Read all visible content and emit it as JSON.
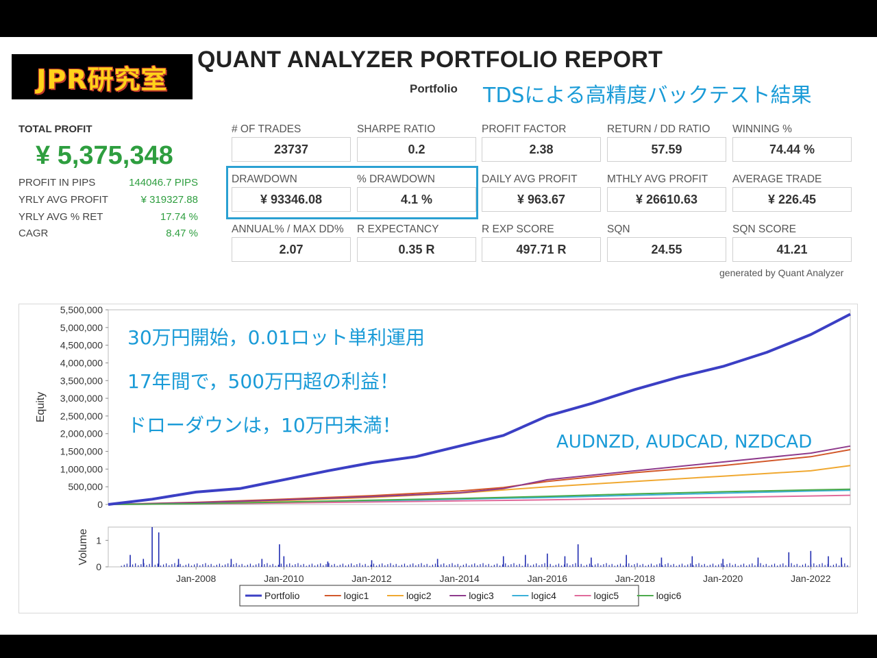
{
  "header": {
    "logo_text": "JPR研究室",
    "title": "QUANT ANALYZER PORTFOLIO REPORT",
    "portfolio_label": "Portfolio",
    "subtitle": "TDSによる高精度バックテスト結果"
  },
  "summary": {
    "total_profit_label": "TOTAL PROFIT",
    "total_profit_value": "¥ 5,375,348",
    "rows": [
      {
        "label": "PROFIT IN PIPS",
        "value": "144046.7 PIPS"
      },
      {
        "label": "YRLY AVG PROFIT",
        "value": "¥ 319327.88"
      },
      {
        "label": "YRLY AVG % RET",
        "value": "17.74 %"
      },
      {
        "label": "CAGR",
        "value": "8.47 %"
      }
    ]
  },
  "stats": [
    {
      "label": "# OF TRADES",
      "value": "23737"
    },
    {
      "label": "SHARPE RATIO",
      "value": "0.2"
    },
    {
      "label": "PROFIT FACTOR",
      "value": "2.38"
    },
    {
      "label": "RETURN / DD RATIO",
      "value": "57.59"
    },
    {
      "label": "WINNING %",
      "value": "74.44 %"
    },
    {
      "label": "DRAWDOWN",
      "value": "¥ 93346.08"
    },
    {
      "label": "% DRAWDOWN",
      "value": "4.1 %"
    },
    {
      "label": "DAILY AVG PROFIT",
      "value": "¥ 963.67"
    },
    {
      "label": "MTHLY AVG PROFIT",
      "value": "¥ 26610.63"
    },
    {
      "label": "AVERAGE TRADE",
      "value": "¥ 226.45"
    },
    {
      "label": "ANNUAL% / MAX DD%",
      "value": "2.07"
    },
    {
      "label": "R EXPECTANCY",
      "value": "0.35 R"
    },
    {
      "label": "R EXP SCORE",
      "value": "497.71 R"
    },
    {
      "label": "SQN",
      "value": "24.55"
    },
    {
      "label": "SQN SCORE",
      "value": "41.21"
    }
  ],
  "generated_by": "generated by Quant Analyzer",
  "colors": {
    "accent_blue": "#2aa0d2",
    "profit_green": "#2e9e3f",
    "annotation_blue": "#1a9bd7"
  },
  "chart_data": {
    "type": "line",
    "ylabel": "Equity",
    "ylim": [
      0,
      5500000
    ],
    "yticks": [
      "5,500,000",
      "5,000,000",
      "4,500,000",
      "4,000,000",
      "3,500,000",
      "3,000,000",
      "2,500,000",
      "2,000,000",
      "1,500,000",
      "1,000,000",
      "500,000",
      "0"
    ],
    "ytick_values": [
      5500000,
      5000000,
      4500000,
      4000000,
      3500000,
      3000000,
      2500000,
      2000000,
      1500000,
      1000000,
      500000,
      0
    ],
    "xlim": [
      2006.0,
      2022.9
    ],
    "xticks": [
      {
        "label": "Jan-2008",
        "x": 2008
      },
      {
        "label": "Jan-2010",
        "x": 2010
      },
      {
        "label": "Jan-2012",
        "x": 2012
      },
      {
        "label": "Jan-2014",
        "x": 2014
      },
      {
        "label": "Jan-2016",
        "x": 2016
      },
      {
        "label": "Jan-2018",
        "x": 2018
      },
      {
        "label": "Jan-2020",
        "x": 2020
      },
      {
        "label": "Jan-2022",
        "x": 2022
      }
    ],
    "grid": false,
    "legend_position": "bottom",
    "series": [
      {
        "name": "Portfolio",
        "color": "#3b3fc4",
        "width": 4,
        "x": [
          2006.0,
          2007.0,
          2008.0,
          2009.0,
          2010.0,
          2011.0,
          2012.0,
          2013.0,
          2014.0,
          2015.0,
          2016.0,
          2017.0,
          2018.0,
          2019.0,
          2020.0,
          2021.0,
          2021.5,
          2022.0,
          2022.9
        ],
        "y": [
          0,
          150000,
          350000,
          450000,
          700000,
          950000,
          1180000,
          1350000,
          1650000,
          1950000,
          2500000,
          2850000,
          3250000,
          3600000,
          3900000,
          4300000,
          4550000,
          4800000,
          5375348
        ]
      },
      {
        "name": "logic1",
        "color": "#d2582a",
        "width": 2,
        "x": [
          2006.0,
          2008.0,
          2010.0,
          2012.0,
          2014.0,
          2015.0,
          2016.0,
          2018.0,
          2020.0,
          2022.0,
          2022.9
        ],
        "y": [
          0,
          60000,
          150000,
          250000,
          380000,
          480000,
          650000,
          900000,
          1100000,
          1350000,
          1550000
        ]
      },
      {
        "name": "logic2",
        "color": "#f0a830",
        "width": 2,
        "x": [
          2006.0,
          2008.0,
          2010.0,
          2012.0,
          2014.0,
          2016.0,
          2018.0,
          2020.0,
          2022.0,
          2022.9
        ],
        "y": [
          0,
          40000,
          110000,
          200000,
          320000,
          500000,
          650000,
          800000,
          950000,
          1100000
        ]
      },
      {
        "name": "logic3",
        "color": "#8e3a8c",
        "width": 2,
        "x": [
          2006.0,
          2008.0,
          2010.0,
          2012.0,
          2014.0,
          2015.0,
          2016.0,
          2018.0,
          2020.0,
          2022.0,
          2022.9
        ],
        "y": [
          0,
          50000,
          130000,
          220000,
          330000,
          450000,
          700000,
          950000,
          1200000,
          1450000,
          1650000
        ]
      },
      {
        "name": "logic4",
        "color": "#3ab0d8",
        "width": 2,
        "x": [
          2006.0,
          2008.0,
          2010.0,
          2012.0,
          2014.0,
          2016.0,
          2018.0,
          2020.0,
          2022.0,
          2022.9
        ],
        "y": [
          0,
          20000,
          60000,
          100000,
          150000,
          200000,
          260000,
          320000,
          380000,
          400000
        ]
      },
      {
        "name": "logic5",
        "color": "#e06a9a",
        "width": 2,
        "x": [
          2006.0,
          2008.0,
          2010.0,
          2012.0,
          2014.0,
          2016.0,
          2018.0,
          2020.0,
          2022.0,
          2022.9
        ],
        "y": [
          0,
          15000,
          40000,
          70000,
          100000,
          130000,
          170000,
          200000,
          240000,
          260000
        ]
      },
      {
        "name": "logic6",
        "color": "#4caa4c",
        "width": 2,
        "x": [
          2006.0,
          2008.0,
          2010.0,
          2012.0,
          2014.0,
          2016.0,
          2018.0,
          2020.0,
          2022.0,
          2022.9
        ],
        "y": [
          0,
          20000,
          70000,
          120000,
          170000,
          230000,
          300000,
          360000,
          410000,
          430000
        ]
      }
    ],
    "volume": {
      "ylabel": "Volume",
      "yticks": [
        "1",
        "0"
      ],
      "ytick_values": [
        1,
        0
      ],
      "ylim": [
        0,
        1.5
      ],
      "spikes": [
        {
          "x": 2006.5,
          "v": 0.45
        },
        {
          "x": 2006.8,
          "v": 0.3
        },
        {
          "x": 2007.0,
          "v": 1.5
        },
        {
          "x": 2007.15,
          "v": 1.3
        },
        {
          "x": 2007.6,
          "v": 0.3
        },
        {
          "x": 2008.8,
          "v": 0.3
        },
        {
          "x": 2009.5,
          "v": 0.3
        },
        {
          "x": 2009.9,
          "v": 0.85
        },
        {
          "x": 2010.0,
          "v": 0.4
        },
        {
          "x": 2011.0,
          "v": 0.2
        },
        {
          "x": 2012.0,
          "v": 0.25
        },
        {
          "x": 2013.5,
          "v": 0.3
        },
        {
          "x": 2015.0,
          "v": 0.4
        },
        {
          "x": 2015.5,
          "v": 0.45
        },
        {
          "x": 2016.0,
          "v": 0.5
        },
        {
          "x": 2016.4,
          "v": 0.4
        },
        {
          "x": 2016.7,
          "v": 0.85
        },
        {
          "x": 2017.0,
          "v": 0.35
        },
        {
          "x": 2017.8,
          "v": 0.45
        },
        {
          "x": 2018.6,
          "v": 0.35
        },
        {
          "x": 2019.3,
          "v": 0.4
        },
        {
          "x": 2020.0,
          "v": 0.3
        },
        {
          "x": 2020.8,
          "v": 0.35
        },
        {
          "x": 2021.5,
          "v": 0.55
        },
        {
          "x": 2022.0,
          "v": 0.6
        },
        {
          "x": 2022.4,
          "v": 0.4
        },
        {
          "x": 2022.7,
          "v": 0.35
        }
      ]
    },
    "annotations": [
      {
        "text": "30万円開始，0.01ロット単利運用"
      },
      {
        "text": "17年間で，500万円超の利益！"
      },
      {
        "text": "ドローダウンは，10万円未満！"
      },
      {
        "text": "AUDNZD, AUDCAD, NZDCAD"
      }
    ]
  }
}
